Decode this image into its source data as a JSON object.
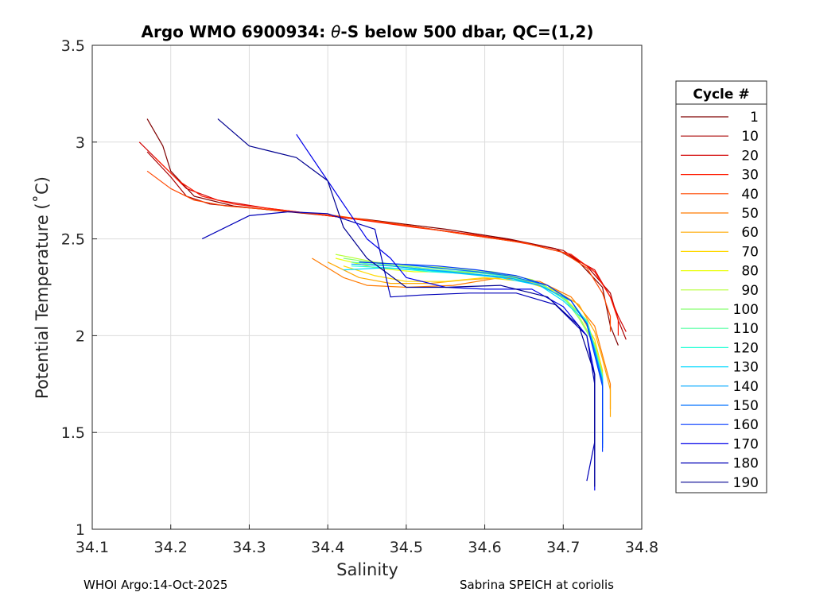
{
  "chart_data": {
    "type": "line",
    "title_prefix": "Argo WMO 6900934: ",
    "title_theta": "θ",
    "title_suffix": "-S below 500 dbar,  QC=(1,2)",
    "xlabel": "Salinity",
    "ylabel": "Potential Temperature (˚C)",
    "xlim": [
      34.1,
      34.8
    ],
    "ylim": [
      1,
      3.5
    ],
    "xticks": [
      "34.1",
      "34.2",
      "34.3",
      "34.4",
      "34.5",
      "34.6",
      "34.7",
      "34.8"
    ],
    "yticks": [
      "1",
      "1.5",
      "2",
      "2.5",
      "3",
      "3.5"
    ],
    "grid": true,
    "legend": {
      "title": "Cycle #",
      "location": "outside-right",
      "entries": [
        {
          "label": "1",
          "color": "#7f0000"
        },
        {
          "label": "10",
          "color": "#a80000"
        },
        {
          "label": "20",
          "color": "#d20000"
        },
        {
          "label": "30",
          "color": "#ff1a00"
        },
        {
          "label": "40",
          "color": "#ff4800"
        },
        {
          "label": "50",
          "color": "#ff7a00"
        },
        {
          "label": "60",
          "color": "#ffa800"
        },
        {
          "label": "70",
          "color": "#ffd800"
        },
        {
          "label": "80",
          "color": "#eaff0d"
        },
        {
          "label": "90",
          "color": "#b8ff3f"
        },
        {
          "label": "100",
          "color": "#86ff71"
        },
        {
          "label": "110",
          "color": "#54ffa3"
        },
        {
          "label": "120",
          "color": "#22ffd5"
        },
        {
          "label": "130",
          "color": "#00d8ff"
        },
        {
          "label": "140",
          "color": "#00a8ff"
        },
        {
          "label": "150",
          "color": "#0070ff"
        },
        {
          "label": "160",
          "color": "#0038ff"
        },
        {
          "label": "170",
          "color": "#0000ea"
        },
        {
          "label": "180",
          "color": "#0000b8"
        },
        {
          "label": "190",
          "color": "#000090"
        }
      ]
    },
    "series": [
      {
        "name": "1",
        "color": "#7f0000",
        "x": [
          34.17,
          34.19,
          34.2,
          34.23,
          34.28,
          34.35,
          34.45,
          34.55,
          34.63,
          34.69,
          34.72,
          34.75,
          34.76,
          34.77
        ],
        "y": [
          3.12,
          2.98,
          2.85,
          2.72,
          2.67,
          2.64,
          2.6,
          2.55,
          2.5,
          2.45,
          2.38,
          2.25,
          2.05,
          1.95
        ]
      },
      {
        "name": "10",
        "color": "#a80000",
        "x": [
          34.17,
          34.2,
          34.22,
          34.25,
          34.3,
          34.38,
          34.48,
          34.57,
          34.64,
          34.7,
          34.73,
          34.76,
          34.77,
          34.78
        ],
        "y": [
          2.95,
          2.82,
          2.72,
          2.68,
          2.66,
          2.63,
          2.58,
          2.53,
          2.49,
          2.44,
          2.36,
          2.22,
          2.08,
          1.98
        ]
      },
      {
        "name": "20",
        "color": "#d20000",
        "x": [
          34.16,
          34.19,
          34.22,
          34.26,
          34.32,
          34.4,
          34.5,
          34.58,
          34.65,
          34.7,
          34.74,
          34.76,
          34.77,
          34.78
        ],
        "y": [
          3.0,
          2.88,
          2.76,
          2.7,
          2.66,
          2.62,
          2.57,
          2.52,
          2.48,
          2.43,
          2.34,
          2.2,
          2.1,
          2.02
        ]
      },
      {
        "name": "30",
        "color": "#ff1a00",
        "x": [
          34.18,
          34.21,
          34.24,
          34.28,
          34.34,
          34.42,
          34.51,
          34.59,
          34.66,
          34.71,
          34.74,
          34.76,
          34.77,
          34.77
        ],
        "y": [
          2.92,
          2.8,
          2.72,
          2.68,
          2.65,
          2.61,
          2.56,
          2.52,
          2.47,
          2.42,
          2.33,
          2.2,
          2.08,
          2.0
        ]
      },
      {
        "name": "40",
        "color": "#ff4800",
        "x": [
          34.17,
          34.2,
          34.23,
          34.27,
          34.33,
          34.41,
          34.5,
          34.58,
          34.65,
          34.7,
          34.73,
          34.75,
          34.76,
          34.76
        ],
        "y": [
          2.85,
          2.76,
          2.7,
          2.67,
          2.65,
          2.62,
          2.57,
          2.52,
          2.48,
          2.43,
          2.35,
          2.22,
          2.1,
          2.02
        ]
      },
      {
        "name": "50",
        "color": "#ff7a00",
        "x": [
          34.38,
          34.42,
          34.45,
          34.5,
          34.56,
          34.62,
          34.67,
          34.71,
          34.74,
          34.75,
          34.76,
          34.76
        ],
        "y": [
          2.4,
          2.3,
          2.26,
          2.25,
          2.26,
          2.3,
          2.28,
          2.2,
          2.05,
          1.9,
          1.75,
          1.62
        ]
      },
      {
        "name": "60",
        "color": "#ffa800",
        "x": [
          34.4,
          34.44,
          34.48,
          34.53,
          34.58,
          34.63,
          34.68,
          34.72,
          34.74,
          34.75,
          34.76,
          34.76
        ],
        "y": [
          2.38,
          2.3,
          2.27,
          2.27,
          2.29,
          2.3,
          2.26,
          2.16,
          2.02,
          1.88,
          1.72,
          1.58
        ]
      },
      {
        "name": "70",
        "color": "#ffd800",
        "x": [
          34.42,
          34.46,
          34.5,
          34.55,
          34.6,
          34.65,
          34.69,
          34.72,
          34.74,
          34.75,
          34.75,
          34.75
        ],
        "y": [
          2.36,
          2.31,
          2.28,
          2.28,
          2.3,
          2.28,
          2.23,
          2.12,
          1.98,
          1.82,
          1.66,
          1.5
        ]
      },
      {
        "name": "80",
        "color": "#eaff0d",
        "x": [
          34.41,
          34.46,
          34.51,
          34.56,
          34.61,
          34.66,
          34.7,
          34.73,
          34.74,
          34.75,
          34.75,
          34.75
        ],
        "y": [
          2.4,
          2.35,
          2.33,
          2.33,
          2.32,
          2.28,
          2.2,
          2.08,
          1.95,
          1.8,
          1.62,
          1.45
        ]
      },
      {
        "name": "90",
        "color": "#b8ff3f",
        "x": [
          34.41,
          34.46,
          34.51,
          34.56,
          34.61,
          34.66,
          34.7,
          34.72,
          34.74,
          34.75,
          34.75,
          34.75
        ],
        "y": [
          2.42,
          2.38,
          2.36,
          2.35,
          2.33,
          2.29,
          2.21,
          2.1,
          1.96,
          1.8,
          1.62,
          1.45
        ]
      },
      {
        "name": "100",
        "color": "#86ff71",
        "x": [
          34.42,
          34.47,
          34.52,
          34.57,
          34.62,
          34.66,
          34.7,
          34.72,
          34.74,
          34.75,
          34.75,
          34.75
        ],
        "y": [
          2.4,
          2.37,
          2.35,
          2.34,
          2.32,
          2.28,
          2.2,
          2.09,
          1.95,
          1.8,
          1.62,
          1.45
        ]
      },
      {
        "name": "110",
        "color": "#54ffa3",
        "x": [
          34.43,
          34.48,
          34.53,
          34.58,
          34.62,
          34.67,
          34.7,
          34.73,
          34.74,
          34.75,
          34.75,
          34.75
        ],
        "y": [
          2.38,
          2.36,
          2.34,
          2.33,
          2.31,
          2.27,
          2.19,
          2.08,
          1.94,
          1.78,
          1.6,
          1.45
        ]
      },
      {
        "name": "120",
        "color": "#22ffd5",
        "x": [
          34.43,
          34.48,
          34.53,
          34.58,
          34.63,
          34.67,
          34.71,
          34.73,
          34.74,
          34.75,
          34.75,
          34.75
        ],
        "y": [
          2.36,
          2.35,
          2.33,
          2.32,
          2.3,
          2.26,
          2.18,
          2.07,
          1.93,
          1.78,
          1.6,
          1.44
        ]
      },
      {
        "name": "130",
        "color": "#00d8ff",
        "x": [
          34.42,
          34.47,
          34.52,
          34.57,
          34.62,
          34.67,
          34.7,
          34.73,
          34.74,
          34.75,
          34.75,
          34.75
        ],
        "y": [
          2.34,
          2.35,
          2.34,
          2.32,
          2.3,
          2.26,
          2.18,
          2.07,
          1.93,
          1.78,
          1.6,
          1.44
        ]
      },
      {
        "name": "140",
        "color": "#00a8ff",
        "x": [
          34.43,
          34.48,
          34.53,
          34.58,
          34.63,
          34.67,
          34.71,
          34.73,
          34.74,
          34.75,
          34.75,
          34.75
        ],
        "y": [
          2.37,
          2.36,
          2.34,
          2.32,
          2.3,
          2.26,
          2.18,
          2.06,
          1.92,
          1.76,
          1.58,
          1.42
        ]
      },
      {
        "name": "150",
        "color": "#0070ff",
        "x": [
          34.44,
          34.49,
          34.54,
          34.59,
          34.63,
          34.68,
          34.71,
          34.73,
          34.74,
          34.75,
          34.75,
          34.75
        ],
        "y": [
          2.38,
          2.37,
          2.35,
          2.33,
          2.31,
          2.26,
          2.18,
          2.06,
          1.92,
          1.76,
          1.58,
          1.42
        ]
      },
      {
        "name": "160",
        "color": "#0038ff",
        "x": [
          34.44,
          34.49,
          34.54,
          34.59,
          34.64,
          34.68,
          34.71,
          34.73,
          34.74,
          34.75,
          34.75,
          34.75
        ],
        "y": [
          2.38,
          2.37,
          2.36,
          2.34,
          2.31,
          2.26,
          2.18,
          2.06,
          1.9,
          1.74,
          1.56,
          1.4
        ]
      },
      {
        "name": "170",
        "color": "#0000ea",
        "x": [
          34.36,
          34.4,
          34.45,
          34.48,
          34.5,
          34.55,
          34.6,
          34.66,
          34.7,
          34.73,
          34.74,
          34.74,
          34.74,
          34.74
        ],
        "y": [
          3.04,
          2.8,
          2.5,
          2.4,
          2.3,
          2.25,
          2.24,
          2.24,
          2.15,
          2.0,
          1.8,
          1.55,
          1.3,
          1.2
        ]
      },
      {
        "name": "180",
        "color": "#0000b8",
        "x": [
          34.24,
          34.3,
          34.35,
          34.4,
          34.46,
          34.48,
          34.52,
          34.58,
          34.64,
          34.69,
          34.73,
          34.74,
          34.74,
          34.73
        ],
        "y": [
          2.5,
          2.62,
          2.64,
          2.63,
          2.55,
          2.2,
          2.21,
          2.22,
          2.22,
          2.16,
          2.0,
          1.75,
          1.45,
          1.25
        ]
      },
      {
        "name": "190",
        "color": "#000090",
        "x": [
          34.26,
          34.3,
          34.33,
          34.36,
          34.4,
          34.42,
          34.45,
          34.5,
          34.55,
          34.62,
          34.68,
          34.72,
          34.74,
          34.74,
          34.74
        ],
        "y": [
          3.12,
          2.98,
          2.95,
          2.92,
          2.8,
          2.56,
          2.4,
          2.25,
          2.25,
          2.26,
          2.2,
          2.05,
          1.8,
          1.5,
          1.22
        ]
      }
    ]
  },
  "footer": {
    "left": "WHOI Argo:14-Oct-2025",
    "right": "Sabrina SPEICH at coriolis"
  }
}
